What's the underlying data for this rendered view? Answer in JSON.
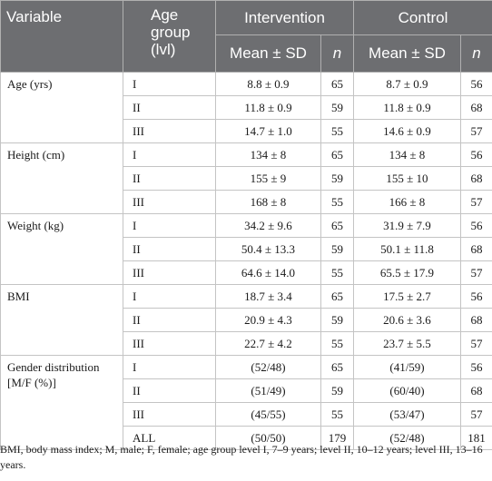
{
  "header": {
    "variable": "Variable",
    "age_group": "Age group (lvl)",
    "intervention": "Intervention",
    "control": "Control",
    "mean_sd": "Mean ± SD",
    "n": "n"
  },
  "groups": [
    {
      "variable": "Age (yrs)",
      "rows": [
        {
          "level": "I",
          "int_mean": "8.8 ± 0.9",
          "int_n": "65",
          "ctl_mean": "8.7 ± 0.9",
          "ctl_n": "56"
        },
        {
          "level": "II",
          "int_mean": "11.8 ± 0.9",
          "int_n": "59",
          "ctl_mean": "11.8 ± 0.9",
          "ctl_n": "68"
        },
        {
          "level": "III",
          "int_mean": "14.7 ± 1.0",
          "int_n": "55",
          "ctl_mean": "14.6 ± 0.9",
          "ctl_n": "57"
        }
      ]
    },
    {
      "variable": "Height (cm)",
      "rows": [
        {
          "level": "I",
          "int_mean": "134 ± 8",
          "int_n": "65",
          "ctl_mean": "134 ± 8",
          "ctl_n": "56"
        },
        {
          "level": "II",
          "int_mean": "155 ± 9",
          "int_n": "59",
          "ctl_mean": "155 ± 10",
          "ctl_n": "68"
        },
        {
          "level": "III",
          "int_mean": "168 ± 8",
          "int_n": "55",
          "ctl_mean": "166 ± 8",
          "ctl_n": "57"
        }
      ]
    },
    {
      "variable": "Weight (kg)",
      "rows": [
        {
          "level": "I",
          "int_mean": "34.2 ± 9.6",
          "int_n": "65",
          "ctl_mean": "31.9 ± 7.9",
          "ctl_n": "56"
        },
        {
          "level": "II",
          "int_mean": "50.4 ± 13.3",
          "int_n": "59",
          "ctl_mean": "50.1 ± 11.8",
          "ctl_n": "68"
        },
        {
          "level": "III",
          "int_mean": "64.6 ± 14.0",
          "int_n": "55",
          "ctl_mean": "65.5 ± 17.9",
          "ctl_n": "57"
        }
      ]
    },
    {
      "variable": "BMI",
      "rows": [
        {
          "level": "I",
          "int_mean": "18.7 ± 3.4",
          "int_n": "65",
          "ctl_mean": "17.5 ± 2.7",
          "ctl_n": "56"
        },
        {
          "level": "II",
          "int_mean": "20.9 ± 4.3",
          "int_n": "59",
          "ctl_mean": "20.6 ± 3.6",
          "ctl_n": "68"
        },
        {
          "level": "III",
          "int_mean": "22.7 ± 4.2",
          "int_n": "55",
          "ctl_mean": "23.7 ± 5.5",
          "ctl_n": "57"
        }
      ]
    },
    {
      "variable": "Gender distribution [M/F (%)]",
      "rows": [
        {
          "level": "I",
          "int_mean": "(52/48)",
          "int_n": "65",
          "ctl_mean": "(41/59)",
          "ctl_n": "56"
        },
        {
          "level": "II",
          "int_mean": "(51/49)",
          "int_n": "59",
          "ctl_mean": "(60/40)",
          "ctl_n": "68"
        },
        {
          "level": "III",
          "int_mean": "(45/55)",
          "int_n": "55",
          "ctl_mean": "(53/47)",
          "ctl_n": "57"
        },
        {
          "level": "ALL",
          "int_mean": "(50/50)",
          "int_n": "179",
          "ctl_mean": "(52/48)",
          "ctl_n": "181"
        }
      ]
    }
  ],
  "footnote": "BMI, body mass index; M, male; F, female; age group level I, 7–9 years; level II, 10–12 years; level III, 13–16 years."
}
